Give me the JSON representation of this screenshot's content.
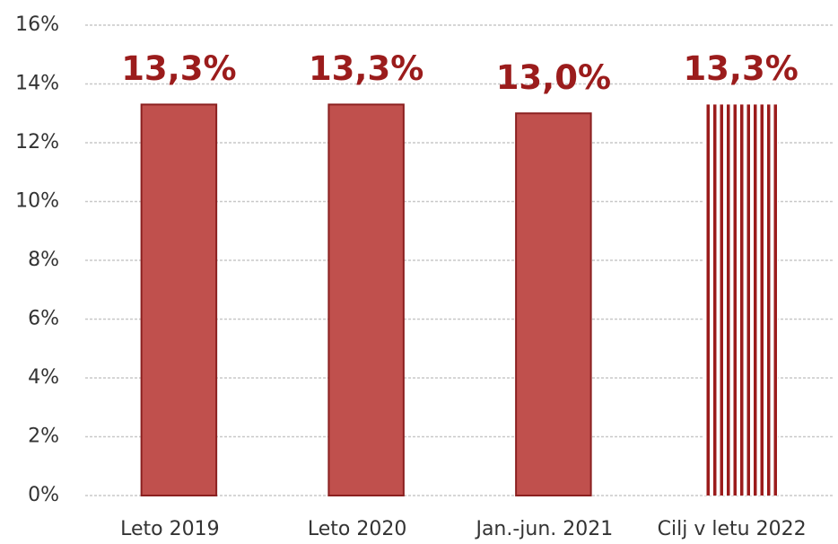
{
  "chart_data": {
    "type": "bar",
    "categories": [
      "Leto 2019",
      "Leto 2020",
      "Jan.-jun. 2021",
      "Cilj v letu 2022"
    ],
    "values": [
      13.3,
      13.3,
      13.0,
      13.3
    ],
    "value_labels": [
      "13,3%",
      "13,3%",
      "13,0%",
      "13,3%"
    ],
    "hatch": [
      false,
      false,
      false,
      true
    ],
    "color": "#c0504d",
    "ylim": [
      0,
      16
    ],
    "yticks": [
      {
        "value": 0,
        "label": "0%"
      },
      {
        "value": 2,
        "label": "2%"
      },
      {
        "value": 4,
        "label": "4%"
      },
      {
        "value": 6,
        "label": "6%"
      },
      {
        "value": 8,
        "label": "8%"
      },
      {
        "value": 10,
        "label": "10%"
      },
      {
        "value": 12,
        "label": "12%"
      },
      {
        "value": 14,
        "label": "14%"
      },
      {
        "value": 16,
        "label": "16%"
      }
    ],
    "grid": true
  }
}
